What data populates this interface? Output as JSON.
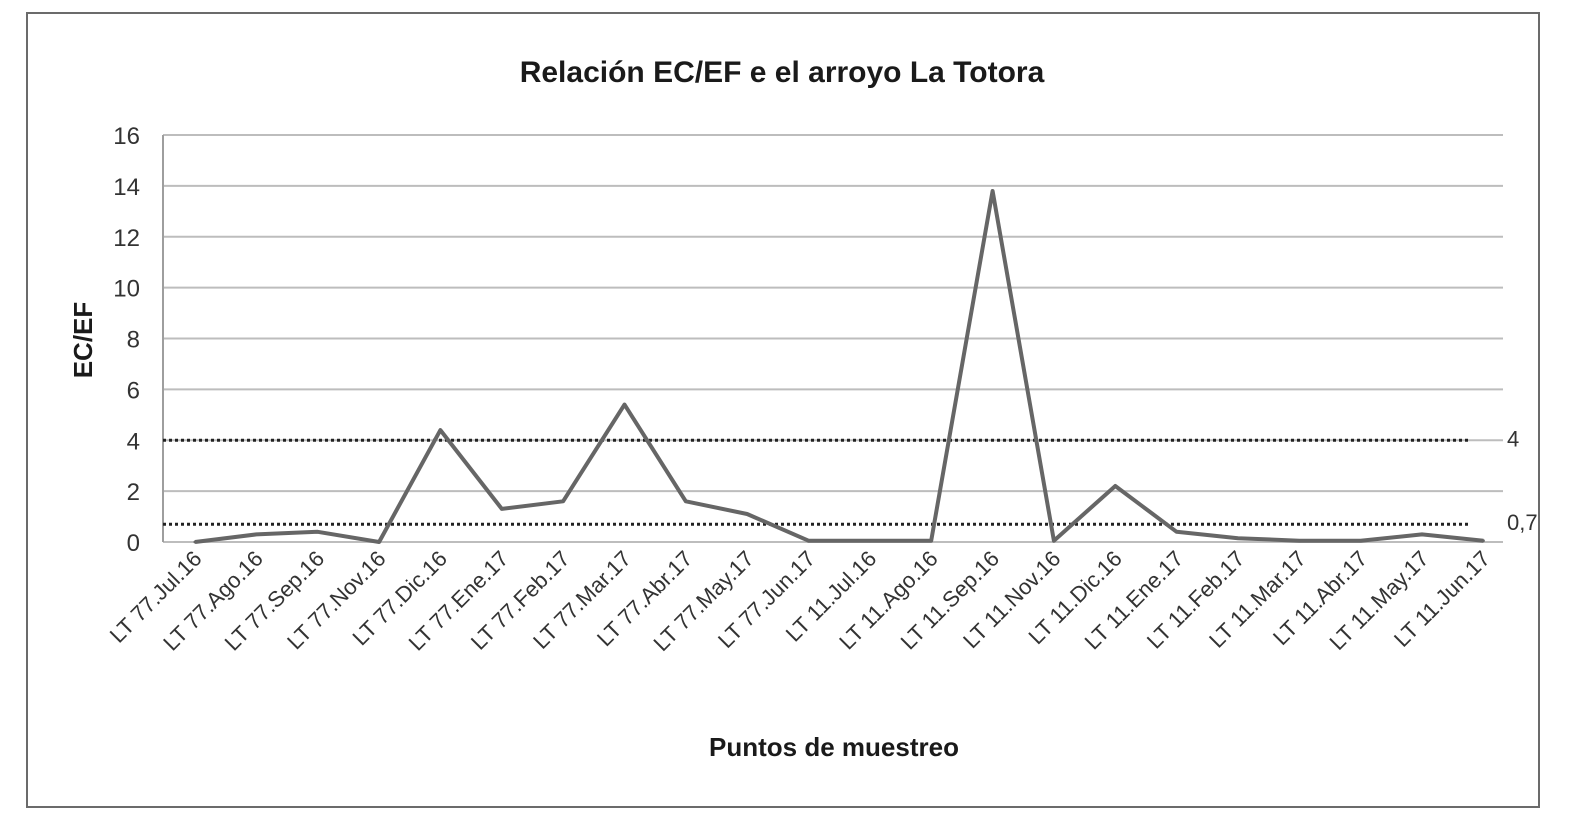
{
  "chart_data": {
    "type": "line",
    "title": "Relación EC/EF e el arroyo La Totora",
    "xlabel": "Puntos de muestreo",
    "ylabel": "EC/EF",
    "ylim": [
      0,
      16
    ],
    "yticks": [
      0,
      2,
      4,
      6,
      8,
      10,
      12,
      14,
      16
    ],
    "grid": true,
    "legend": "none",
    "line_color": "#666666",
    "categories": [
      "LT 77.Jul.16",
      "LT 77.Ago.16",
      "LT 77.Sep.16",
      "LT 77.Nov.16",
      "LT 77.Dic.16",
      "LT 77.Ene.17",
      "LT 77.Feb.17",
      "LT 77.Mar.17",
      "LT 77.Abr.17",
      "LT 77.May.17",
      "LT 77.Jun.17",
      "LT 11.Jul.16",
      "LT 11.Ago.16",
      "LT 11.Sep.16",
      "LT 11.Nov.16",
      "LT 11.Dic.16",
      "LT 11.Ene.17",
      "LT 11.Feb.17",
      "LT 11.Mar.17",
      "LT 11.Abr.17",
      "LT 11.May.17",
      "LT 11.Jun.17"
    ],
    "series": [
      {
        "values": [
          0.0,
          0.3,
          0.4,
          0.0,
          4.4,
          1.3,
          1.6,
          5.4,
          1.6,
          1.1,
          0.05,
          0.05,
          0.05,
          13.8,
          0.05,
          2.2,
          0.4,
          0.15,
          0.05,
          0.05,
          0.3,
          0.05
        ]
      }
    ],
    "reference_lines": [
      {
        "value": 4,
        "label": "4",
        "style": "dotted"
      },
      {
        "value": 0.7,
        "label": "0,7",
        "style": "dotted"
      }
    ]
  }
}
